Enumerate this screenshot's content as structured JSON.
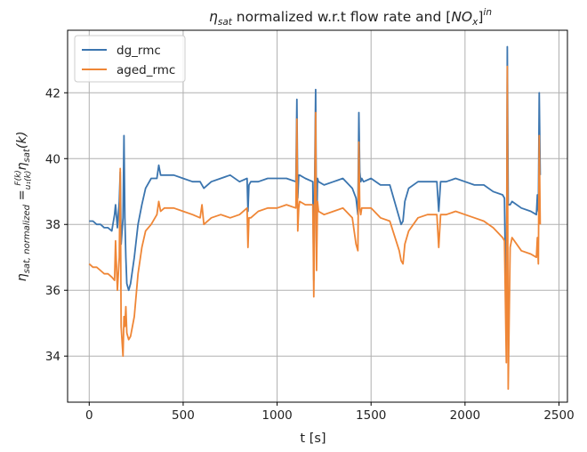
{
  "chart_data": {
    "type": "line",
    "title": "η_sat normalized w.r.t flow rate and [NO_x]^in",
    "title_parts": {
      "eta": "η",
      "sat_sub": "sat",
      "middle": " normalized w.r.t flow rate and [",
      "no": "NO",
      "x_sub": "x",
      "close": "]",
      "in_sup": "in"
    },
    "xlabel": "t [s]",
    "ylabel": "η_sat,normalized = F(k)/u1(k) η_sat(k)",
    "ylabel_parts": {
      "eta": "η",
      "sub": "sat, normalized",
      "eq": " = ",
      "frac_num": "F(k)",
      "frac_den": "u₁(k)",
      "eta2": "η",
      "sub2": "sat",
      "arg": "(k)"
    },
    "xlim": [
      -115,
      2545
    ],
    "ylim": [
      32.6,
      43.9
    ],
    "xticks": [
      0,
      500,
      1000,
      1500,
      2000,
      2500
    ],
    "yticks": [
      34,
      36,
      38,
      40,
      42
    ],
    "grid": true,
    "legend_position": "upper-left",
    "colors": {
      "dg_rmc": "#3b75af",
      "aged_rmc": "#ef8636"
    },
    "series": [
      {
        "name": "dg_rmc",
        "x": [
          0,
          20,
          40,
          60,
          80,
          100,
          120,
          135,
          140,
          150,
          160,
          165,
          170,
          180,
          185,
          190,
          195,
          200,
          210,
          220,
          240,
          260,
          280,
          300,
          330,
          360,
          370,
          380,
          400,
          450,
          500,
          550,
          590,
          600,
          610,
          650,
          700,
          750,
          800,
          840,
          845,
          850,
          860,
          900,
          950,
          1000,
          1050,
          1100,
          1105,
          1110,
          1115,
          1120,
          1150,
          1190,
          1195,
          1200,
          1205,
          1210,
          1215,
          1220,
          1250,
          1300,
          1350,
          1400,
          1420,
          1430,
          1435,
          1440,
          1445,
          1450,
          1460,
          1500,
          1550,
          1600,
          1650,
          1660,
          1670,
          1680,
          1700,
          1750,
          1800,
          1850,
          1860,
          1870,
          1900,
          1950,
          2000,
          2050,
          2100,
          2150,
          2200,
          2210,
          2220,
          2225,
          2230,
          2240,
          2250,
          2300,
          2350,
          2380,
          2385,
          2390,
          2395,
          2400
        ],
        "y": [
          38.1,
          38.1,
          38.0,
          38.0,
          37.9,
          37.9,
          37.8,
          38.3,
          38.6,
          37.9,
          38.7,
          39.6,
          37.4,
          38.2,
          40.7,
          38.2,
          37.0,
          36.2,
          36.0,
          36.2,
          37.0,
          38.0,
          38.6,
          39.1,
          39.4,
          39.4,
          39.8,
          39.5,
          39.5,
          39.5,
          39.4,
          39.3,
          39.3,
          39.2,
          39.1,
          39.3,
          39.4,
          39.5,
          39.3,
          39.4,
          38.4,
          39.2,
          39.3,
          39.3,
          39.4,
          39.4,
          39.4,
          39.3,
          41.8,
          38.8,
          39.5,
          39.5,
          39.4,
          39.3,
          36.3,
          39.3,
          42.1,
          37.4,
          39.4,
          39.3,
          39.2,
          39.3,
          39.4,
          39.1,
          38.8,
          38.3,
          41.4,
          39.6,
          39.3,
          39.4,
          39.3,
          39.4,
          39.2,
          39.2,
          38.2,
          38.0,
          38.1,
          38.7,
          39.1,
          39.3,
          39.3,
          39.3,
          38.4,
          39.3,
          39.3,
          39.4,
          39.3,
          39.2,
          39.2,
          39.0,
          38.9,
          38.8,
          34.5,
          43.4,
          38.6,
          38.6,
          38.7,
          38.5,
          38.4,
          38.3,
          38.9,
          38.4,
          42.0,
          39.5
        ]
      },
      {
        "name": "aged_rmc",
        "x": [
          0,
          20,
          40,
          60,
          80,
          100,
          120,
          135,
          140,
          150,
          160,
          165,
          170,
          180,
          185,
          190,
          195,
          200,
          210,
          220,
          240,
          260,
          280,
          300,
          330,
          360,
          370,
          380,
          400,
          450,
          500,
          550,
          590,
          600,
          610,
          650,
          700,
          750,
          800,
          840,
          845,
          850,
          860,
          900,
          950,
          1000,
          1050,
          1100,
          1105,
          1110,
          1115,
          1120,
          1150,
          1190,
          1195,
          1200,
          1205,
          1210,
          1215,
          1220,
          1250,
          1300,
          1350,
          1400,
          1420,
          1430,
          1435,
          1440,
          1445,
          1450,
          1460,
          1500,
          1550,
          1600,
          1650,
          1660,
          1670,
          1680,
          1700,
          1750,
          1800,
          1850,
          1860,
          1870,
          1900,
          1950,
          2000,
          2050,
          2100,
          2150,
          2200,
          2210,
          2220,
          2225,
          2230,
          2240,
          2250,
          2300,
          2350,
          2380,
          2385,
          2390,
          2395,
          2400
        ],
        "y": [
          36.8,
          36.7,
          36.7,
          36.6,
          36.5,
          36.5,
          36.4,
          36.3,
          37.5,
          36.0,
          37.0,
          39.7,
          34.9,
          34.0,
          35.2,
          34.9,
          35.5,
          34.7,
          34.5,
          34.6,
          35.2,
          36.5,
          37.3,
          37.8,
          38.0,
          38.3,
          38.7,
          38.4,
          38.5,
          38.5,
          38.4,
          38.3,
          38.2,
          38.6,
          38.0,
          38.2,
          38.3,
          38.2,
          38.3,
          38.5,
          37.3,
          38.2,
          38.2,
          38.4,
          38.5,
          38.5,
          38.6,
          38.5,
          41.2,
          37.8,
          38.5,
          38.7,
          38.6,
          38.6,
          35.8,
          38.6,
          41.4,
          36.6,
          38.7,
          38.4,
          38.3,
          38.4,
          38.5,
          38.2,
          37.4,
          37.2,
          40.5,
          38.5,
          38.3,
          38.5,
          38.5,
          38.5,
          38.2,
          38.1,
          37.2,
          36.9,
          36.8,
          37.4,
          37.8,
          38.2,
          38.3,
          38.3,
          37.3,
          38.3,
          38.3,
          38.4,
          38.3,
          38.2,
          38.1,
          37.9,
          37.6,
          37.5,
          33.8,
          42.8,
          33.0,
          37.3,
          37.6,
          37.2,
          37.1,
          37.0,
          37.6,
          36.8,
          40.7,
          38.0
        ]
      }
    ]
  }
}
